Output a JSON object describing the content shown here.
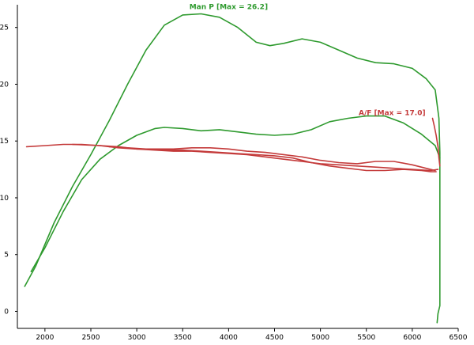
{
  "chart_data": {
    "type": "line",
    "xlim": [
      1700,
      6500
    ],
    "ylim": [
      -1.5,
      27
    ],
    "x_ticks": [
      2000,
      2500,
      3000,
      3500,
      4000,
      4500,
      5000,
      5500,
      6000,
      6500
    ],
    "y_ticks": [
      0,
      5,
      10,
      15,
      20,
      25
    ],
    "x_tick_labels": [
      "2000",
      "2500",
      "3000",
      "3500",
      "4000",
      "4500",
      "5000",
      "5500",
      "6000",
      "6500"
    ],
    "y_tick_labels": [
      "0",
      "5",
      "10",
      "15",
      "20",
      "25"
    ],
    "grid": false,
    "series": [
      {
        "name": "Man P",
        "label": "Man P  [Max = 26.2]",
        "color": "#2e9a2e",
        "lines": [
          [
            [
              1780,
              2.2
            ],
            [
              1900,
              4.0
            ],
            [
              2100,
              7.8
            ],
            [
              2300,
              11.0
            ],
            [
              2500,
              13.8
            ],
            [
              2700,
              16.8
            ],
            [
              2900,
              20.0
            ],
            [
              3100,
              23.0
            ],
            [
              3300,
              25.2
            ],
            [
              3500,
              26.1
            ],
            [
              3700,
              26.2
            ],
            [
              3900,
              25.9
            ],
            [
              4100,
              25.0
            ],
            [
              4300,
              23.7
            ],
            [
              4450,
              23.4
            ],
            [
              4600,
              23.6
            ],
            [
              4800,
              24.0
            ],
            [
              5000,
              23.7
            ],
            [
              5200,
              23.0
            ],
            [
              5400,
              22.3
            ],
            [
              5600,
              21.9
            ],
            [
              5800,
              21.8
            ],
            [
              6000,
              21.4
            ],
            [
              6150,
              20.5
            ],
            [
              6250,
              19.5
            ],
            [
              6290,
              17.0
            ],
            [
              6300,
              14.0
            ],
            [
              6300,
              5.0
            ],
            [
              6300,
              0.5
            ],
            [
              6280,
              -0.2
            ],
            [
              6270,
              -1.0
            ]
          ],
          [
            [
              1850,
              3.5
            ],
            [
              2000,
              5.6
            ],
            [
              2200,
              8.8
            ],
            [
              2400,
              11.6
            ],
            [
              2600,
              13.4
            ],
            [
              2800,
              14.6
            ],
            [
              3000,
              15.5
            ],
            [
              3200,
              16.1
            ],
            [
              3300,
              16.2
            ],
            [
              3500,
              16.1
            ],
            [
              3700,
              15.9
            ],
            [
              3900,
              16.0
            ],
            [
              4100,
              15.8
            ],
            [
              4300,
              15.6
            ],
            [
              4500,
              15.5
            ],
            [
              4700,
              15.6
            ],
            [
              4900,
              16.0
            ],
            [
              5100,
              16.7
            ],
            [
              5300,
              17.0
            ],
            [
              5500,
              17.2
            ],
            [
              5700,
              17.2
            ],
            [
              5900,
              16.6
            ],
            [
              6100,
              15.6
            ],
            [
              6250,
              14.6
            ],
            [
              6300,
              13.5
            ]
          ]
        ]
      },
      {
        "name": "A/F",
        "label": "A/F  [Max = 17.0]",
        "color": "#c43a3a",
        "lines": [
          [
            [
              1800,
              14.5
            ],
            [
              2000,
              14.6
            ],
            [
              2200,
              14.7
            ],
            [
              2400,
              14.7
            ],
            [
              2600,
              14.6
            ],
            [
              2800,
              14.4
            ],
            [
              3000,
              14.3
            ],
            [
              3200,
              14.2
            ],
            [
              3400,
              14.1
            ],
            [
              3600,
              14.1
            ],
            [
              3800,
              14.0
            ],
            [
              4000,
              13.9
            ],
            [
              4200,
              13.8
            ],
            [
              4400,
              13.6
            ],
            [
              4600,
              13.4
            ],
            [
              4800,
              13.2
            ],
            [
              5000,
              13.0
            ],
            [
              5200,
              12.9
            ],
            [
              5400,
              12.8
            ],
            [
              5600,
              12.7
            ],
            [
              5800,
              12.6
            ],
            [
              6000,
              12.5
            ],
            [
              6200,
              12.4
            ],
            [
              6280,
              12.5
            ]
          ],
          [
            [
              2300,
              14.7
            ],
            [
              2600,
              14.6
            ],
            [
              2800,
              14.5
            ],
            [
              3000,
              14.3
            ],
            [
              3200,
              14.3
            ],
            [
              3400,
              14.3
            ],
            [
              3600,
              14.4
            ],
            [
              3800,
              14.4
            ],
            [
              4000,
              14.3
            ],
            [
              4200,
              14.1
            ],
            [
              4400,
              14.0
            ],
            [
              4600,
              13.8
            ],
            [
              4800,
              13.6
            ],
            [
              5000,
              13.3
            ],
            [
              5200,
              13.1
            ],
            [
              5400,
              13.0
            ],
            [
              5600,
              13.2
            ],
            [
              5800,
              13.2
            ],
            [
              6000,
              12.9
            ],
            [
              6150,
              12.6
            ],
            [
              6250,
              12.4
            ]
          ],
          [
            [
              2700,
              14.5
            ],
            [
              2900,
              14.4
            ],
            [
              3100,
              14.3
            ],
            [
              3300,
              14.2
            ],
            [
              3500,
              14.2
            ],
            [
              3700,
              14.1
            ],
            [
              3900,
              14.0
            ],
            [
              4100,
              13.9
            ],
            [
              4300,
              13.8
            ],
            [
              4500,
              13.7
            ],
            [
              4700,
              13.5
            ],
            [
              4900,
              13.1
            ],
            [
              5100,
              12.8
            ],
            [
              5300,
              12.6
            ],
            [
              5500,
              12.4
            ],
            [
              5700,
              12.4
            ],
            [
              5900,
              12.5
            ],
            [
              6100,
              12.4
            ],
            [
              6200,
              12.3
            ],
            [
              6260,
              12.3
            ]
          ],
          [
            [
              6220,
              17.0
            ],
            [
              6240,
              16.3
            ],
            [
              6260,
              15.5
            ],
            [
              6280,
              14.5
            ],
            [
              6290,
              13.5
            ],
            [
              6300,
              12.8
            ]
          ]
        ]
      }
    ]
  }
}
